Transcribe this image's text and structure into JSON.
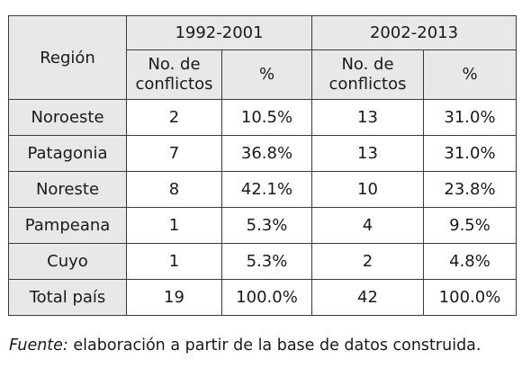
{
  "table": {
    "header": {
      "region_label": "Región",
      "periods": [
        "1992-2001",
        "2002-2013"
      ],
      "conflicts_label": "No. de conflictos",
      "percent_label": "%"
    },
    "rows": [
      {
        "region": "Noroeste",
        "c1": "2",
        "p1": "10.5%",
        "c2": "13",
        "p2": "31.0%"
      },
      {
        "region": "Patagonia",
        "c1": "7",
        "p1": "36.8%",
        "c2": "13",
        "p2": "31.0%"
      },
      {
        "region": "Noreste",
        "c1": "8",
        "p1": "42.1%",
        "c2": "10",
        "p2": "23.8%"
      },
      {
        "region": "Pampeana",
        "c1": "1",
        "p1": "5.3%",
        "c2": "4",
        "p2": "9.5%"
      },
      {
        "region": "Cuyo",
        "c1": "1",
        "p1": "5.3%",
        "c2": "2",
        "p2": "4.8%"
      },
      {
        "region": "Total país",
        "c1": "19",
        "p1": "100.0%",
        "c2": "42",
        "p2": "100.0%"
      }
    ]
  },
  "caption": {
    "label": "Fuente:",
    "text": " elaboración a partir de la base de datos construida."
  }
}
